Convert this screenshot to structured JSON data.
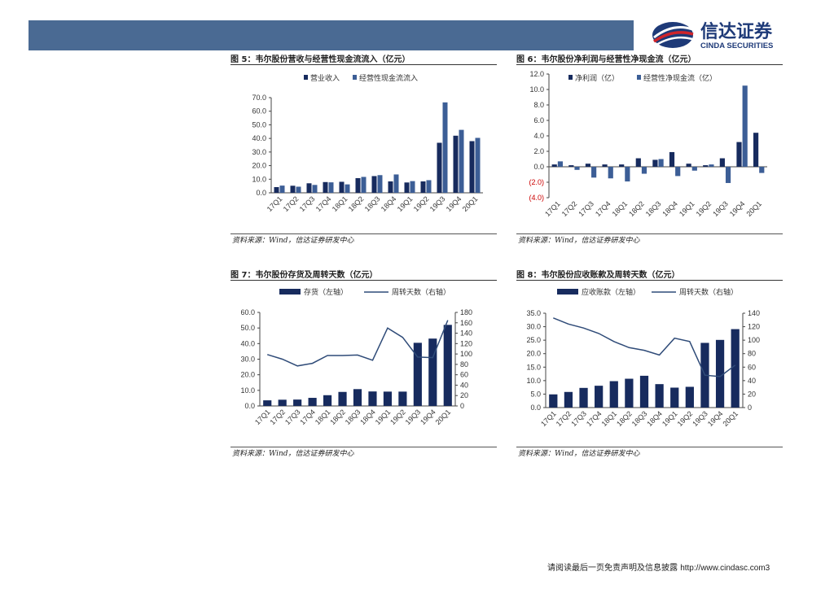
{
  "brand": {
    "name_cn": "信达证券",
    "name_en": "CINDA SECURITIES"
  },
  "footer": {
    "text": "请阅读最后一页免责声明及信息披露",
    "url": "http://www.cindasc.com3"
  },
  "colors": {
    "header": "#4a6a93",
    "bar_dark": "#172b5e",
    "bar_light": "#3c5e96",
    "line": "#2f4b78",
    "negative_label": "#cc0000"
  },
  "figures": [
    {
      "title": "图 5：韦尔股份营收与经营性现金流流入（亿元）",
      "source": "资料来源：Wind，信达证券研发中心"
    },
    {
      "title": "图 6：韦尔股份净利润与经营性净现金流（亿元）",
      "source": "资料来源：Wind，信达证券研发中心"
    },
    {
      "title": "图 7：韦尔股份存货及周转天数（亿元）",
      "source": "资料来源：Wind，信达证券研发中心"
    },
    {
      "title": "图 8：韦尔股份应收账款及周转天数（亿元）",
      "source": "资料来源：Wind，信达证券研发中心"
    }
  ],
  "chart_data": [
    {
      "type": "bar",
      "categories": [
        "17Q1",
        "17Q2",
        "17Q3",
        "17Q4",
        "18Q1",
        "18Q2",
        "18Q3",
        "18Q4",
        "19Q1",
        "19Q2",
        "19Q3",
        "19Q4",
        "20Q1"
      ],
      "series": [
        {
          "name": "营业收入",
          "values": [
            4.2,
            5.2,
            7.0,
            7.9,
            8.1,
            10.8,
            12.3,
            8.4,
            7.6,
            8.4,
            36.8,
            42.0,
            38.0
          ]
        },
        {
          "name": "经营性现金流流入",
          "values": [
            5.3,
            4.5,
            5.8,
            7.7,
            6.2,
            11.7,
            13.0,
            13.5,
            8.6,
            9.3,
            66.5,
            46.3,
            40.4
          ]
        }
      ],
      "ylim": [
        0,
        70
      ],
      "yticks": [
        "70.0",
        "60.0",
        "50.0",
        "40.0",
        "30.0",
        "20.0",
        "10.0",
        "0.0"
      ],
      "legend": "top"
    },
    {
      "type": "bar",
      "categories": [
        "17Q1",
        "17Q2",
        "17Q3",
        "17Q4",
        "18Q1",
        "18Q2",
        "18Q3",
        "18Q4",
        "19Q1",
        "19Q2",
        "19Q3",
        "19Q4",
        "20Q1"
      ],
      "series": [
        {
          "name": "净利润（亿）",
          "values": [
            0.3,
            0.2,
            0.4,
            0.3,
            0.3,
            1.1,
            0.9,
            1.9,
            0.4,
            0.2,
            1.1,
            3.2,
            4.4
          ]
        },
        {
          "name": "经营性净现金流（亿）",
          "values": [
            0.7,
            -0.4,
            -1.4,
            -1.5,
            -1.9,
            -0.9,
            1.0,
            -1.2,
            -0.5,
            0.3,
            -2.1,
            10.5,
            -0.8
          ]
        }
      ],
      "ylim": [
        -4,
        12
      ],
      "yticks": [
        "12.0",
        "10.0",
        "8.0",
        "6.0",
        "4.0",
        "2.0",
        "0.0",
        "(2.0)",
        "(4.0)"
      ],
      "legend": "top"
    },
    {
      "type": "bar",
      "categories": [
        "17Q1",
        "17Q2",
        "17Q3",
        "17Q4",
        "18Q1",
        "18Q2",
        "18Q3",
        "18Q4",
        "19Q1",
        "19Q2",
        "19Q3",
        "19Q4",
        "20Q1"
      ],
      "series": [
        {
          "name": "存货（左轴）",
          "kind": "bar",
          "axis": "left",
          "values": [
            3.6,
            4.0,
            4.1,
            5.2,
            6.9,
            9.0,
            10.8,
            9.3,
            9.2,
            9.2,
            40.5,
            43.2,
            52.0
          ]
        },
        {
          "name": "周转天数（右轴）",
          "kind": "line",
          "axis": "right",
          "values": [
            99,
            90,
            77,
            82,
            97,
            97,
            98,
            88,
            150,
            132,
            94,
            93,
            165
          ]
        }
      ],
      "ylim": [
        0,
        60
      ],
      "y2lim": [
        0,
        180
      ],
      "yticks": [
        "60.0",
        "50.0",
        "40.0",
        "30.0",
        "20.0",
        "10.0",
        "0.0"
      ],
      "y2ticks": [
        "180",
        "160",
        "140",
        "120",
        "100",
        "80",
        "60",
        "40",
        "20",
        "0"
      ],
      "legend": "top"
    },
    {
      "type": "bar",
      "categories": [
        "17Q1",
        "17Q2",
        "17Q3",
        "17Q4",
        "18Q1",
        "18Q2",
        "18Q3",
        "18Q4",
        "19Q1",
        "19Q2",
        "19Q3",
        "19Q4",
        "20Q1"
      ],
      "series": [
        {
          "name": "应收账款（左轴）",
          "kind": "bar",
          "axis": "left",
          "values": [
            4.9,
            5.8,
            7.3,
            8.1,
            9.8,
            10.7,
            11.8,
            8.7,
            7.4,
            7.7,
            24.0,
            25.1,
            29.1
          ]
        },
        {
          "name": "周转天数（右轴）",
          "kind": "line",
          "axis": "right",
          "values": [
            133,
            124,
            118,
            110,
            98,
            89,
            85,
            78,
            103,
            98,
            48,
            46,
            63
          ]
        }
      ],
      "ylim": [
        0,
        35
      ],
      "y2lim": [
        0,
        140
      ],
      "yticks": [
        "35.0",
        "30.0",
        "25.0",
        "20.0",
        "15.0",
        "10.0",
        "5.0",
        "0.0"
      ],
      "y2ticks": [
        "140",
        "120",
        "100",
        "80",
        "60",
        "40",
        "20",
        "0"
      ],
      "legend": "top"
    }
  ]
}
